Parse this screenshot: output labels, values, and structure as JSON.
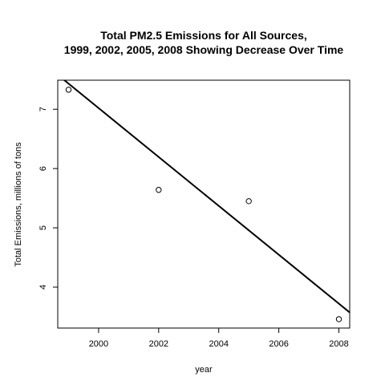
{
  "chart_data": {
    "type": "scatter",
    "title_lines": [
      "Total PM2.5 Emissions for All Sources,",
      "1999, 2002, 2005, 2008 Showing Decrease Over Time"
    ],
    "xlabel": "year",
    "ylabel": "Total Emissions, millions of tons",
    "xlim": [
      1998.64,
      2008.36
    ],
    "ylim": [
      3.31,
      7.49
    ],
    "xticks": [
      2000,
      2002,
      2004,
      2006,
      2008
    ],
    "yticks": [
      4,
      5,
      6,
      7
    ],
    "grid": false,
    "points": [
      {
        "x": 1999,
        "y": 7.33
      },
      {
        "x": 2002,
        "y": 5.64
      },
      {
        "x": 2005,
        "y": 5.45
      },
      {
        "x": 2008,
        "y": 3.46
      }
    ],
    "trend_line": {
      "slope": -0.4123,
      "intercept": 831.62
    }
  }
}
